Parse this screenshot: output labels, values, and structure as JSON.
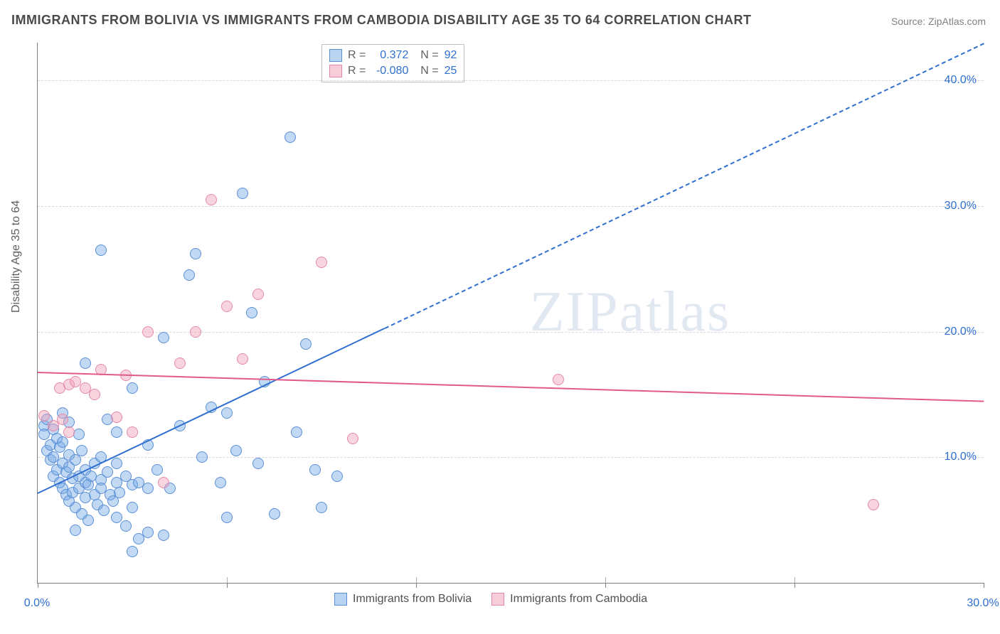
{
  "title": "IMMIGRANTS FROM BOLIVIA VS IMMIGRANTS FROM CAMBODIA DISABILITY AGE 35 TO 64 CORRELATION CHART",
  "source": "Source: ZipAtlas.com",
  "ylabel": "Disability Age 35 to 64",
  "watermark": "ZIPatlas",
  "chart": {
    "type": "scatter-correlation",
    "background_color": "#ffffff",
    "grid_color": "#d8d8d8",
    "axis_color": "#808080",
    "tick_label_color": "#2f6fd0",
    "tick_fontsize": 16,
    "title_fontsize": 18,
    "label_fontsize": 16,
    "xlim": [
      0,
      30
    ],
    "ylim": [
      0,
      43
    ],
    "xticks": [
      0,
      6,
      12,
      18,
      24,
      30
    ],
    "xtick_labels_shown": {
      "0": "0.0%",
      "30": "30.0%"
    },
    "yticks": [
      10,
      20,
      30,
      40
    ],
    "ytick_labels": [
      "10.0%",
      "20.0%",
      "30.0%",
      "40.0%"
    ],
    "point_radius": 8,
    "point_border_width": 1.2,
    "series": [
      {
        "name": "Immigrants from Bolivia",
        "fill_color": "rgba(120,170,230,0.45)",
        "stroke_color": "#5a8fd6",
        "swatch_fill": "#b9d4f2",
        "swatch_border": "#5a8fd6",
        "R": "0.372",
        "N": "92",
        "trend": {
          "x1": 0,
          "y1": 7.2,
          "x2": 30,
          "y2": 43,
          "solid_until_x": 11.0,
          "color": "#2f6fd0",
          "width": 2
        },
        "points": [
          [
            0.2,
            12.5
          ],
          [
            0.2,
            11.8
          ],
          [
            0.3,
            13.0
          ],
          [
            0.3,
            10.5
          ],
          [
            0.4,
            11.0
          ],
          [
            0.4,
            9.8
          ],
          [
            0.5,
            12.2
          ],
          [
            0.5,
            8.5
          ],
          [
            0.5,
            10.0
          ],
          [
            0.6,
            11.5
          ],
          [
            0.6,
            9.0
          ],
          [
            0.7,
            8.0
          ],
          [
            0.7,
            10.8
          ],
          [
            0.8,
            7.5
          ],
          [
            0.8,
            9.5
          ],
          [
            0.8,
            11.2
          ],
          [
            0.9,
            8.8
          ],
          [
            0.9,
            7.0
          ],
          [
            1.0,
            9.2
          ],
          [
            1.0,
            10.2
          ],
          [
            1.0,
            6.5
          ],
          [
            1.1,
            8.3
          ],
          [
            1.1,
            7.2
          ],
          [
            1.2,
            9.8
          ],
          [
            1.2,
            6.0
          ],
          [
            1.3,
            8.5
          ],
          [
            1.3,
            7.5
          ],
          [
            1.4,
            10.5
          ],
          [
            1.4,
            5.5
          ],
          [
            1.5,
            8.0
          ],
          [
            1.5,
            9.0
          ],
          [
            1.5,
            6.8
          ],
          [
            1.6,
            7.8
          ],
          [
            1.6,
            5.0
          ],
          [
            1.7,
            8.5
          ],
          [
            1.8,
            7.0
          ],
          [
            1.8,
            9.5
          ],
          [
            1.9,
            6.2
          ],
          [
            2.0,
            8.2
          ],
          [
            2.0,
            7.5
          ],
          [
            2.0,
            10.0
          ],
          [
            2.1,
            5.8
          ],
          [
            2.2,
            8.8
          ],
          [
            2.3,
            7.0
          ],
          [
            2.4,
            6.5
          ],
          [
            2.5,
            8.0
          ],
          [
            2.5,
            5.2
          ],
          [
            2.6,
            7.2
          ],
          [
            2.8,
            8.5
          ],
          [
            2.8,
            4.5
          ],
          [
            3.0,
            7.8
          ],
          [
            3.0,
            6.0
          ],
          [
            3.2,
            8.0
          ],
          [
            3.2,
            3.5
          ],
          [
            3.5,
            7.5
          ],
          [
            3.5,
            4.0
          ],
          [
            2.0,
            26.5
          ],
          [
            1.5,
            17.5
          ],
          [
            2.2,
            13.0
          ],
          [
            2.5,
            12.0
          ],
          [
            3.0,
            15.5
          ],
          [
            3.5,
            11.0
          ],
          [
            3.8,
            9.0
          ],
          [
            4.0,
            19.5
          ],
          [
            4.2,
            7.5
          ],
          [
            4.5,
            12.5
          ],
          [
            4.8,
            24.5
          ],
          [
            5.0,
            26.2
          ],
          [
            5.2,
            10.0
          ],
          [
            5.5,
            14.0
          ],
          [
            5.8,
            8.0
          ],
          [
            6.0,
            13.5
          ],
          [
            6.0,
            5.2
          ],
          [
            6.3,
            10.5
          ],
          [
            6.5,
            31.0
          ],
          [
            6.8,
            21.5
          ],
          [
            7.0,
            9.5
          ],
          [
            7.2,
            16.0
          ],
          [
            7.5,
            5.5
          ],
          [
            8.0,
            35.5
          ],
          [
            8.2,
            12.0
          ],
          [
            8.5,
            19.0
          ],
          [
            8.8,
            9.0
          ],
          [
            9.0,
            6.0
          ],
          [
            9.5,
            8.5
          ],
          [
            3.0,
            2.5
          ],
          [
            4.0,
            3.8
          ],
          [
            1.2,
            4.2
          ],
          [
            0.8,
            13.5
          ],
          [
            1.0,
            12.8
          ],
          [
            1.3,
            11.8
          ],
          [
            2.5,
            9.5
          ]
        ]
      },
      {
        "name": "Immigrants from Cambodia",
        "fill_color": "rgba(240,160,185,0.45)",
        "stroke_color": "#e589a8",
        "swatch_fill": "#f6cdd9",
        "swatch_border": "#e589a8",
        "R": "-0.080",
        "N": "25",
        "trend": {
          "x1": 0,
          "y1": 16.8,
          "x2": 30,
          "y2": 14.5,
          "solid_until_x": 30,
          "color": "#e15a8a",
          "width": 2
        },
        "points": [
          [
            0.2,
            13.3
          ],
          [
            0.5,
            12.5
          ],
          [
            0.7,
            15.5
          ],
          [
            0.8,
            13.0
          ],
          [
            1.0,
            15.8
          ],
          [
            1.2,
            16.0
          ],
          [
            1.5,
            15.5
          ],
          [
            2.0,
            17.0
          ],
          [
            2.5,
            13.2
          ],
          [
            3.0,
            12.0
          ],
          [
            3.5,
            20.0
          ],
          [
            4.0,
            8.0
          ],
          [
            4.5,
            17.5
          ],
          [
            5.0,
            20.0
          ],
          [
            5.5,
            30.5
          ],
          [
            6.0,
            22.0
          ],
          [
            6.5,
            17.8
          ],
          [
            7.0,
            23.0
          ],
          [
            9.0,
            25.5
          ],
          [
            10.0,
            11.5
          ],
          [
            16.5,
            16.2
          ],
          [
            26.5,
            6.2
          ],
          [
            1.8,
            15.0
          ],
          [
            2.8,
            16.5
          ],
          [
            1.0,
            12.0
          ]
        ]
      }
    ],
    "bottom_legend": [
      {
        "label": "Immigrants from Bolivia",
        "key": 0
      },
      {
        "label": "Immigrants from Cambodia",
        "key": 1
      }
    ]
  }
}
